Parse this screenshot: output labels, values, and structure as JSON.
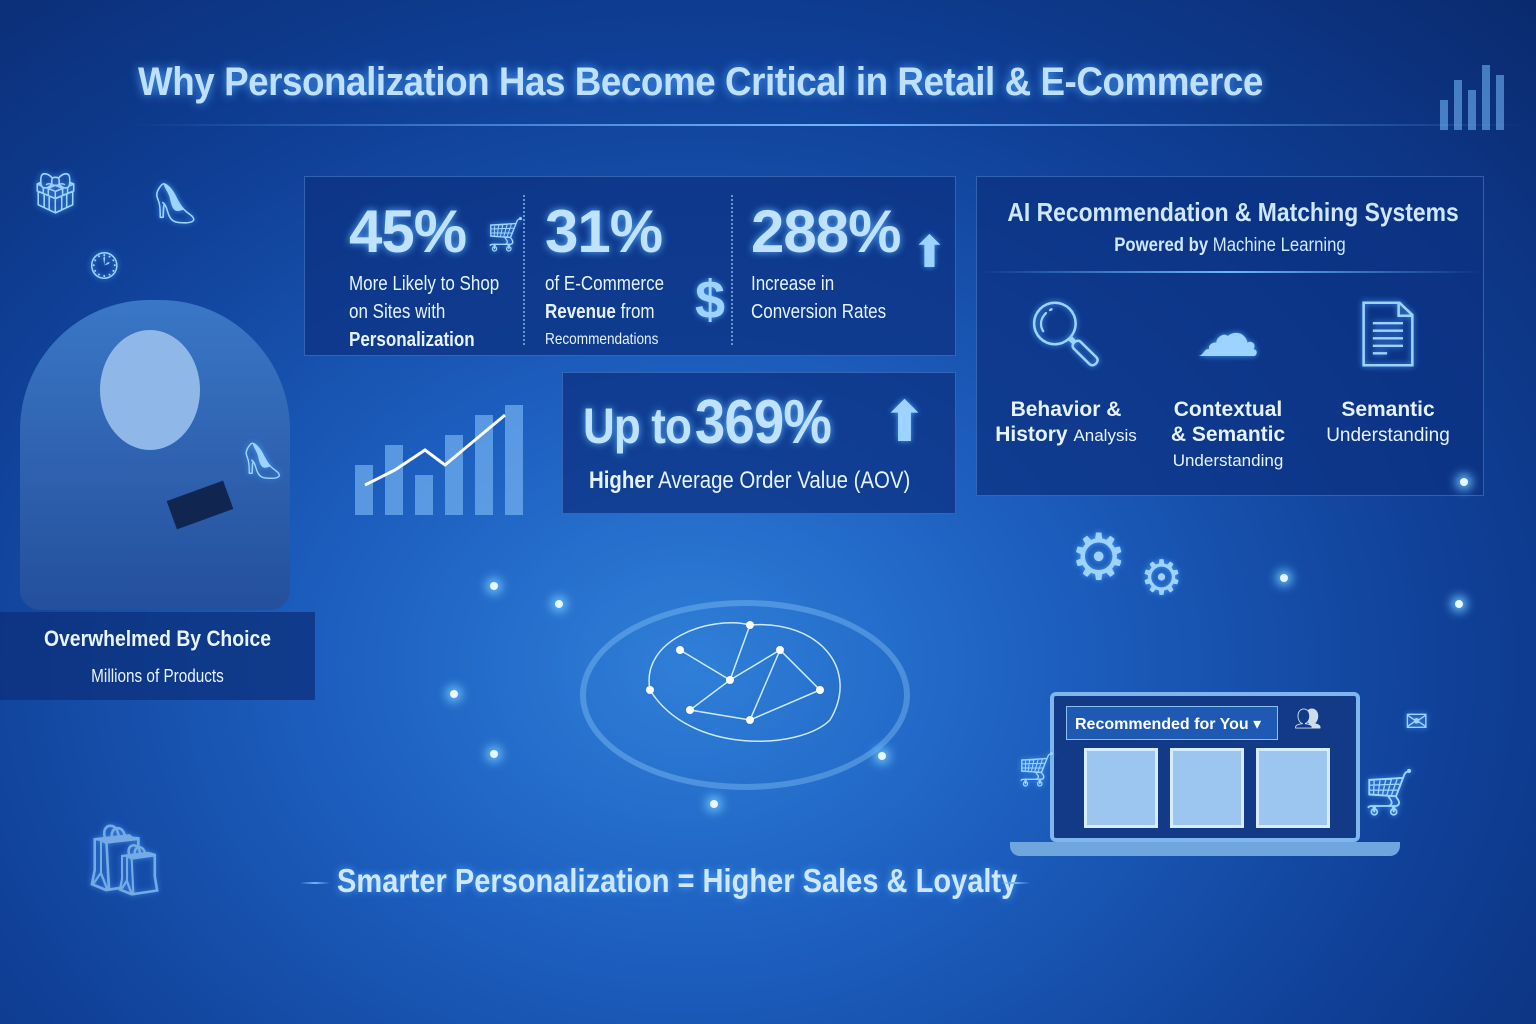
{
  "title": "Why Personalization Has Become Critical in Retail & E-Commerce",
  "stats": [
    {
      "value": "45%",
      "line1": "More Likely to Shop",
      "line2": "on Sites with",
      "line3": "Personalization",
      "icon": "shopping-cart-icon"
    },
    {
      "value": "31%",
      "line1": "of E-Commerce",
      "line2_bold": "Revenue",
      "line2_rest": "from",
      "line3": "Recommendations",
      "icon": "dollar-icon"
    },
    {
      "value": "288%",
      "line1": "Increase in",
      "line2": "Conversion Rates",
      "icon": "arrow-up-icon"
    }
  ],
  "aov": {
    "prefix": "Up to",
    "value": "369%",
    "bold": "Higher",
    "rest": "Average Order Value (AOV)",
    "icon": "arrow-up-icon"
  },
  "ai_panel": {
    "title": "AI Recommendation & Matching Systems",
    "subtitle_bold": "Powered by",
    "subtitle_rest": "Machine Learning",
    "items": [
      {
        "bold1": "Behavior &",
        "bold2": "History",
        "rest": "Analysis",
        "icon": "user-search-icon"
      },
      {
        "bold1": "Contextual",
        "bold2": "& Semantic",
        "rest": "Understanding",
        "icon": "brain-icon"
      },
      {
        "bold1": "Semantic",
        "bold2": "",
        "rest": "Understanding",
        "icon": "document-icon"
      }
    ]
  },
  "left": {
    "heading": "Overwhelmed By Choice",
    "sub": "Millions of Products"
  },
  "laptop": {
    "dropdown": "Recommended for You"
  },
  "tagline": "Smarter Personalization = Higher Sales & Loyalty",
  "colors": {
    "background": "#1d5fbf",
    "panel": "#0c3282",
    "accent": "#bfe3ff"
  }
}
